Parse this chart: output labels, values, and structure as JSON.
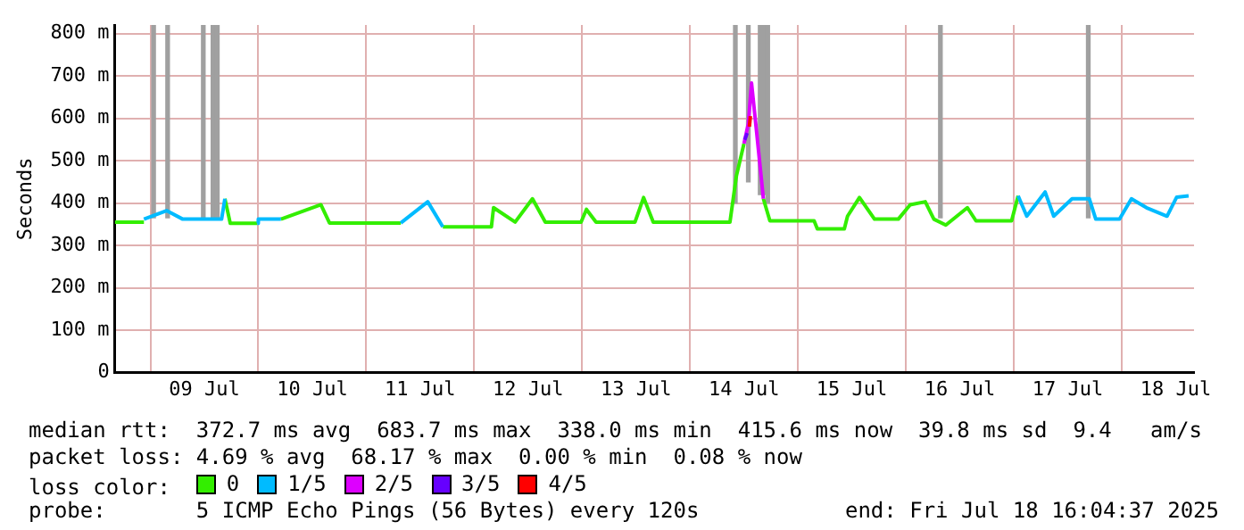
{
  "chart_data": {
    "type": "line",
    "ylabel": "Seconds",
    "xlim": [
      "2025-07-08T16:05",
      "2025-07-18T16:05"
    ],
    "xticks": [
      {
        "value": "2025-07-09T12:00",
        "label": "09 Jul"
      },
      {
        "value": "2025-07-10T12:00",
        "label": "10 Jul"
      },
      {
        "value": "2025-07-11T12:00",
        "label": "11 Jul"
      },
      {
        "value": "2025-07-12T12:00",
        "label": "12 Jul"
      },
      {
        "value": "2025-07-13T12:00",
        "label": "13 Jul"
      },
      {
        "value": "2025-07-14T12:00",
        "label": "14 Jul"
      },
      {
        "value": "2025-07-15T12:00",
        "label": "15 Jul"
      },
      {
        "value": "2025-07-16T12:00",
        "label": "16 Jul"
      },
      {
        "value": "2025-07-17T12:00",
        "label": "17 Jul"
      },
      {
        "value": "2025-07-18T12:00",
        "label": "18 Jul"
      }
    ],
    "ylim": [
      0,
      820
    ],
    "yticks": [
      0,
      {
        "value": 100,
        "label": "100 m"
      },
      {
        "value": 200,
        "label": "200 m"
      },
      {
        "value": 300,
        "label": "300 m"
      },
      {
        "value": 400,
        "label": "400 m"
      },
      {
        "value": 500,
        "label": "500 m"
      },
      {
        "value": 600,
        "label": "600 m"
      },
      {
        "value": 700,
        "label": "700 m"
      },
      {
        "value": 800,
        "label": "800 m"
      }
    ],
    "grid": true,
    "legend": "bottom",
    "legend_title": "loss color:",
    "series": [
      {
        "type": "bar",
        "color": "#a0a0a0",
        "x": [
          "2025-07-09T00:43",
          "2025-07-09T03:50",
          "2025-07-09T11:46",
          "2025-07-09T13:55",
          "2025-07-09T14:53",
          "2025-07-14T10:05",
          "2025-07-14T12:58",
          "2025-07-14T15:36",
          "2025-07-14T16:19",
          "2025-07-14T17:17",
          "2025-07-16T07:41",
          "2025-07-17T16:34"
        ],
        "base": [
          365,
          365,
          365,
          365,
          365,
          400,
          450,
          420,
          420,
          400,
          365,
          365
        ],
        "values": [
          455,
          455,
          455,
          455,
          455,
          420,
          370,
          400,
          400,
          420,
          455,
          455
        ]
      },
      {
        "name": "0",
        "color": "#33ee00",
        "x": [
          "2025-07-08T16:05",
          "2025-07-08T22:34",
          "2025-07-09T07:12",
          "2025-07-09T16:34",
          "2025-07-09T17:46",
          "2025-07-09T23:46",
          "2025-07-10T02:24",
          "2025-07-10T05:02",
          "2025-07-10T13:55",
          "2025-07-10T15:50",
          "2025-07-11T07:41",
          "2025-07-11T12:00",
          "2025-07-11T17:02",
          "2025-07-12T00:00",
          "2025-07-12T03:50",
          "2025-07-12T04:19",
          "2025-07-12T09:07",
          "2025-07-12T12:58",
          "2025-07-12T15:50",
          "2025-07-12T23:46",
          "2025-07-13T00:58",
          "2025-07-13T03:07",
          "2025-07-13T11:46",
          "2025-07-13T13:41",
          "2025-07-13T15:50",
          "2025-07-14T08:53",
          "2025-07-14T10:19",
          "2025-07-14T12:00",
          "2025-07-14T14:24",
          "2025-07-14T16:19",
          "2025-07-14T17:46",
          "2025-07-15T03:36",
          "2025-07-15T04:19",
          "2025-07-15T10:19",
          "2025-07-15T11:02",
          "2025-07-15T13:41",
          "2025-07-15T17:02",
          "2025-07-15T22:19",
          "2025-07-16T00:58",
          "2025-07-16T04:19",
          "2025-07-16T06:14",
          "2025-07-16T08:53",
          "2025-07-16T13:41",
          "2025-07-16T15:36",
          "2025-07-16T23:31",
          "2025-07-17T00:58"
        ],
        "values": [
          355,
          355,
          null,
          410,
          352,
          352,
          null,
          362,
          396,
          353,
          353,
          null,
          344,
          344,
          344,
          389,
          355,
          410,
          355,
          355,
          385,
          355,
          355,
          413,
          355,
          355,
          464,
          540,
          null,
          410,
          358,
          358,
          339,
          339,
          369,
          413,
          362,
          362,
          396,
          403,
          362,
          348,
          389,
          358,
          358,
          417
        ]
      },
      {
        "name": "1/5",
        "color": "#00bbff",
        "x": [
          "2025-07-08T22:34",
          "2025-07-09T03:36",
          "2025-07-09T07:12",
          "2025-07-09T15:50",
          "2025-07-09T16:34",
          "2025-07-09T19:12",
          "2025-07-09T23:46",
          "2025-07-10T00:00",
          "2025-07-10T05:02",
          "2025-07-10T09:36",
          "2025-07-11T07:41",
          "2025-07-11T13:41",
          "2025-07-11T17:02",
          "2025-07-12T00:00",
          "2025-07-17T00:58",
          "2025-07-17T02:53",
          "2025-07-17T06:58",
          "2025-07-17T08:53",
          "2025-07-17T12:58",
          "2025-07-17T16:48",
          "2025-07-17T18:14",
          "2025-07-17T23:31",
          "2025-07-18T02:10",
          "2025-07-18T05:31",
          "2025-07-18T10:05",
          "2025-07-18T12:14",
          "2025-07-18T14:53"
        ],
        "values": [
          362,
          382,
          362,
          362,
          410,
          null,
          352,
          362,
          362,
          null,
          353,
          403,
          344,
          null,
          417,
          369,
          426,
          369,
          410,
          410,
          362,
          362,
          410,
          389,
          369,
          414,
          417
        ]
      },
      {
        "name": "2/5",
        "color": "#dd00ff",
        "x": [
          "2025-07-14T12:00",
          "2025-07-14T12:58",
          "2025-07-14T13:41",
          "2025-07-14T14:53",
          "2025-07-14T16:19"
        ],
        "values": [
          540,
          587,
          683,
          560,
          410
        ]
      },
      {
        "name": "3/5",
        "color": "#6600ff",
        "x": [
          "2025-07-14T12:10",
          "2025-07-14T12:43"
        ],
        "values": [
          549,
          565
        ]
      },
      {
        "name": "4/5",
        "color": "#ff0000",
        "x": [
          "2025-07-14T13:12",
          "2025-07-14T13:26"
        ],
        "values": [
          580,
          605
        ]
      }
    ],
    "annotations": [
      "median rtt:  372.7 ms avg  683.7 ms max  338.0 ms min  415.6 ms now  39.8 ms sd  9.4   am/s",
      "packet loss: 4.69 % avg  68.17 % max  0.00 % min  0.08 % now",
      "probe:       5 ICMP Echo Pings (56 Bytes) every 120s",
      "end: Fri Jul 18 16:04:37 2025"
    ]
  }
}
